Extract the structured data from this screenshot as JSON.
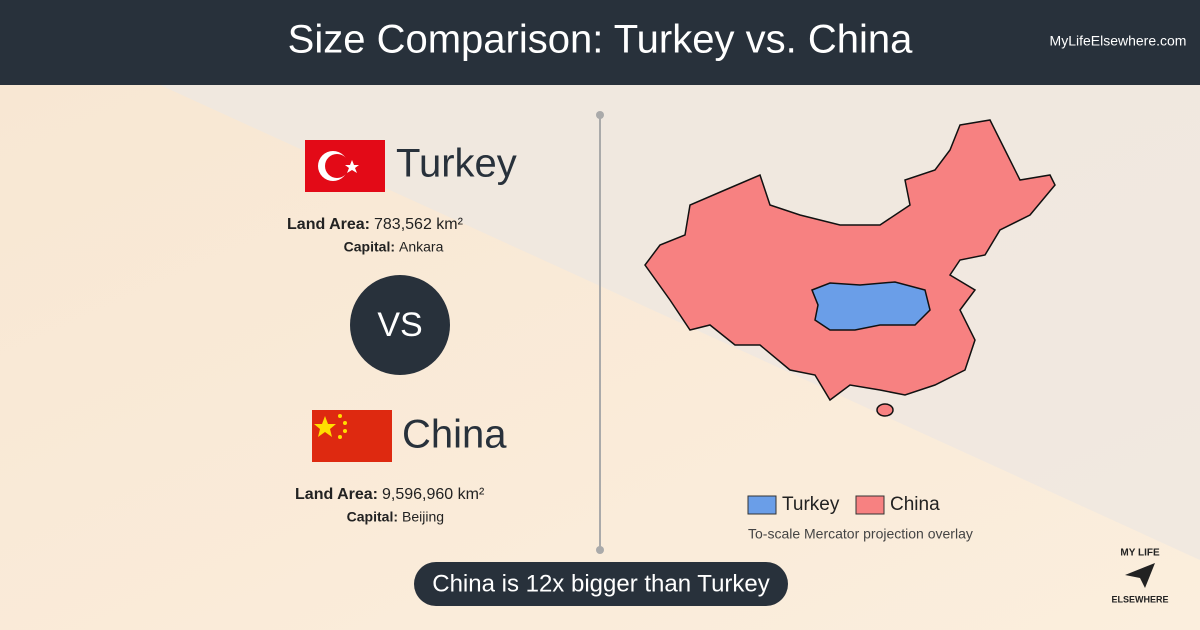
{
  "header": {
    "title": "Size Comparison: Turkey vs. China",
    "site": "MyLifeElsewhere.com"
  },
  "countries": [
    {
      "name": "Turkey",
      "land_area_label": "Land Area:",
      "land_area": "783,562 km²",
      "capital_label": "Capital:",
      "capital": "Ankara"
    },
    {
      "name": "China",
      "land_area_label": "Land Area:",
      "land_area": "9,596,960 km²",
      "capital_label": "Capital:",
      "capital": "Beijing"
    }
  ],
  "vs": "VS",
  "legend": [
    "Turkey",
    "China"
  ],
  "note": "To-scale Mercator projection overlay",
  "summary": "China is 12x bigger than Turkey",
  "logo": [
    "MY LIFE",
    "ELSEWHERE"
  ]
}
